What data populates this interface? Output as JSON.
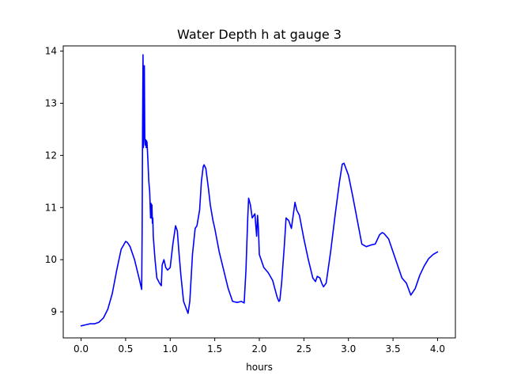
{
  "chart_data": {
    "type": "line",
    "title": "Water Depth h at gauge 3",
    "xlabel": "hours",
    "ylabel": "",
    "xlim": [
      -0.2,
      4.2
    ],
    "ylim": [
      8.5,
      14.1
    ],
    "x_ticks": [
      0.0,
      0.5,
      1.0,
      1.5,
      2.0,
      2.5,
      3.0,
      3.5,
      4.0
    ],
    "x_tick_labels": [
      "0.0",
      "0.5",
      "1.0",
      "1.5",
      "2.0",
      "2.5",
      "3.0",
      "3.5",
      "4.0"
    ],
    "y_ticks": [
      9,
      10,
      11,
      12,
      13,
      14
    ],
    "y_tick_labels": [
      "9",
      "10",
      "11",
      "12",
      "13",
      "14"
    ],
    "grid": false,
    "legend": "none",
    "series": [
      {
        "name": "",
        "color": "#0000ff",
        "x": [
          0.0,
          0.05,
          0.1,
          0.12,
          0.15,
          0.2,
          0.25,
          0.3,
          0.35,
          0.4,
          0.45,
          0.5,
          0.52,
          0.55,
          0.6,
          0.65,
          0.68,
          0.685,
          0.69,
          0.695,
          0.7,
          0.705,
          0.71,
          0.715,
          0.72,
          0.725,
          0.73,
          0.735,
          0.74,
          0.75,
          0.76,
          0.77,
          0.78,
          0.785,
          0.79,
          0.795,
          0.8,
          0.805,
          0.81,
          0.83,
          0.85,
          0.88,
          0.9,
          0.91,
          0.93,
          0.95,
          0.97,
          1.0,
          1.03,
          1.06,
          1.08,
          1.1,
          1.12,
          1.15,
          1.2,
          1.22,
          1.25,
          1.28,
          1.3,
          1.33,
          1.35,
          1.37,
          1.38,
          1.4,
          1.43,
          1.45,
          1.48,
          1.5,
          1.55,
          1.6,
          1.65,
          1.7,
          1.75,
          1.8,
          1.83,
          1.85,
          1.86,
          1.87,
          1.88,
          1.9,
          1.92,
          1.95,
          1.97,
          1.98,
          1.99,
          2.0,
          2.05,
          2.1,
          2.15,
          2.2,
          2.22,
          2.23,
          2.25,
          2.28,
          2.3,
          2.33,
          2.36,
          2.4,
          2.42,
          2.45,
          2.5,
          2.55,
          2.6,
          2.63,
          2.65,
          2.68,
          2.7,
          2.72,
          2.75,
          2.8,
          2.85,
          2.9,
          2.93,
          2.95,
          3.0,
          3.05,
          3.1,
          3.15,
          3.2,
          3.25,
          3.3,
          3.35,
          3.38,
          3.4,
          3.45,
          3.5,
          3.55,
          3.6,
          3.65,
          3.7,
          3.75,
          3.8,
          3.85,
          3.9,
          3.95,
          4.0
        ],
        "y": [
          8.73,
          8.75,
          8.77,
          8.77,
          8.77,
          8.8,
          8.88,
          9.05,
          9.35,
          9.8,
          10.2,
          10.35,
          10.33,
          10.25,
          10.0,
          9.65,
          9.43,
          10.5,
          12.5,
          13.93,
          12.15,
          12.8,
          13.72,
          12.35,
          12.2,
          12.3,
          12.15,
          12.28,
          12.25,
          11.9,
          11.5,
          11.3,
          10.8,
          11.08,
          10.8,
          11.05,
          10.7,
          10.8,
          10.45,
          10.0,
          9.65,
          9.55,
          9.5,
          9.9,
          10.0,
          9.85,
          9.8,
          9.85,
          10.3,
          10.65,
          10.55,
          10.1,
          9.7,
          9.2,
          8.97,
          9.2,
          10.1,
          10.6,
          10.65,
          10.95,
          11.5,
          11.78,
          11.82,
          11.75,
          11.35,
          11.05,
          10.75,
          10.6,
          10.15,
          9.8,
          9.45,
          9.2,
          9.18,
          9.2,
          9.17,
          9.8,
          10.3,
          10.8,
          11.18,
          11.05,
          10.8,
          10.88,
          10.45,
          10.85,
          10.6,
          10.1,
          9.85,
          9.75,
          9.6,
          9.28,
          9.2,
          9.22,
          9.55,
          10.25,
          10.8,
          10.75,
          10.6,
          11.1,
          10.95,
          10.85,
          10.4,
          10.0,
          9.65,
          9.58,
          9.68,
          9.65,
          9.55,
          9.48,
          9.55,
          10.15,
          10.85,
          11.5,
          11.83,
          11.85,
          11.62,
          11.2,
          10.75,
          10.3,
          10.25,
          10.28,
          10.3,
          10.48,
          10.52,
          10.5,
          10.4,
          10.15,
          9.9,
          9.65,
          9.55,
          9.32,
          9.45,
          9.7,
          9.88,
          10.02,
          10.1,
          10.15
        ]
      }
    ]
  }
}
